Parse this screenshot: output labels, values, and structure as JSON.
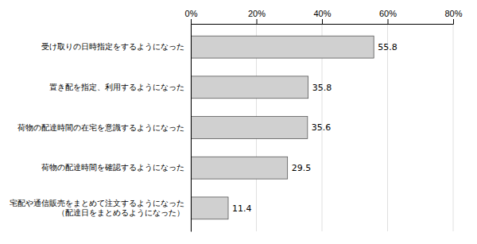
{
  "chart_data": {
    "type": "bar",
    "orientation": "horizontal",
    "categories": [
      "受け取りの日時指定をするようになった",
      "置き配を指定、利用するようになった",
      "荷物の配達時間の在宅を意識するようになった",
      "荷物の配達時間を確認するようになった",
      "宅配や通信販売をまとめて注文するようになった\n（配達日をまとめるようになった）"
    ],
    "values": [
      55.8,
      35.8,
      35.6,
      29.5,
      11.4
    ],
    "color": "#d0d0d0",
    "xlim": [
      0,
      80
    ],
    "xticks": [
      {
        "value": 0,
        "label": "0%"
      },
      {
        "value": 20,
        "label": "20%"
      },
      {
        "value": 40,
        "label": "40%"
      },
      {
        "value": 60,
        "label": "60%"
      },
      {
        "value": 80,
        "label": "80%"
      }
    ],
    "grid": true,
    "data_labels": true
  }
}
